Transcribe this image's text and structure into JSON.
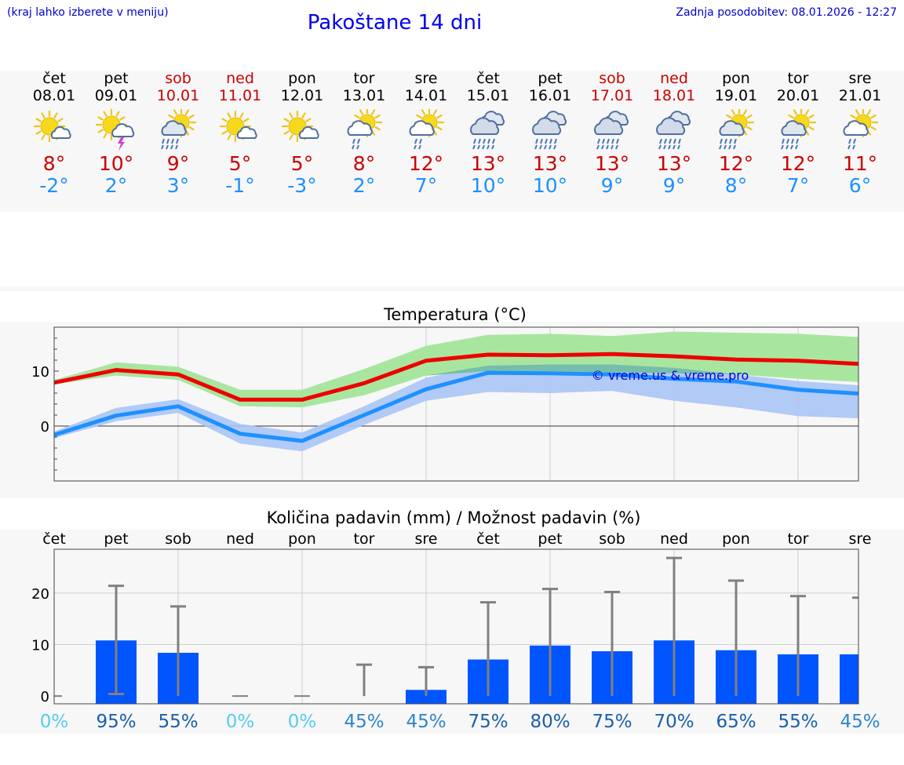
{
  "header": {
    "hint": "(kraj lahko izberete v meniju)",
    "title": "Pakoštane 14 dni",
    "updated": "Zadnja posodobitev: 08.01.2026 - 12:27"
  },
  "days": [
    {
      "name": "čet",
      "date": "08.01",
      "weekend": false,
      "icon": "sun-cloud-icon",
      "hi": "8°",
      "lo": "-2°"
    },
    {
      "name": "pet",
      "date": "09.01",
      "weekend": false,
      "icon": "sun-thunder-icon",
      "hi": "10°",
      "lo": "2°"
    },
    {
      "name": "sob",
      "date": "10.01",
      "weekend": true,
      "icon": "sun-rain-icon",
      "hi": "9°",
      "lo": "3°"
    },
    {
      "name": "ned",
      "date": "11.01",
      "weekend": true,
      "icon": "sun-cloud-icon",
      "hi": "5°",
      "lo": "-1°"
    },
    {
      "name": "pon",
      "date": "12.01",
      "weekend": false,
      "icon": "sun-cloud-icon",
      "hi": "5°",
      "lo": "-3°"
    },
    {
      "name": "tor",
      "date": "13.01",
      "weekend": false,
      "icon": "sun-light-rain-icon",
      "hi": "8°",
      "lo": "2°"
    },
    {
      "name": "sre",
      "date": "14.01",
      "weekend": false,
      "icon": "sun-light-rain-icon",
      "hi": "12°",
      "lo": "7°"
    },
    {
      "name": "čet",
      "date": "15.01",
      "weekend": false,
      "icon": "cloud-rain-icon",
      "hi": "13°",
      "lo": "10°"
    },
    {
      "name": "pet",
      "date": "16.01",
      "weekend": false,
      "icon": "cloud-rain-icon",
      "hi": "13°",
      "lo": "10°"
    },
    {
      "name": "sob",
      "date": "17.01",
      "weekend": true,
      "icon": "cloud-rain-icon",
      "hi": "13°",
      "lo": "9°"
    },
    {
      "name": "ned",
      "date": "18.01",
      "weekend": true,
      "icon": "cloud-rain-icon",
      "hi": "13°",
      "lo": "9°"
    },
    {
      "name": "pon",
      "date": "19.01",
      "weekend": false,
      "icon": "sun-rain-icon",
      "hi": "12°",
      "lo": "8°"
    },
    {
      "name": "tor",
      "date": "20.01",
      "weekend": false,
      "icon": "sun-rain-icon",
      "hi": "12°",
      "lo": "7°"
    },
    {
      "name": "sre",
      "date": "21.01",
      "weekend": false,
      "icon": "sun-light-rain-icon",
      "hi": "11°",
      "lo": "6°"
    }
  ],
  "colors": {
    "max_line": "#ee0000",
    "min_line": "#1e90ff",
    "max_band": "#a8e6a0",
    "min_band": "#a9c4f5",
    "overlap_band": "#6cbc9c",
    "precip_bar": "#0055ff",
    "error_bar": "#808080",
    "weekend": "#cc0000",
    "watermark": "#0000dd"
  },
  "chart_data": [
    {
      "type": "line",
      "title": "Temperatura (°C)",
      "xlabel": "",
      "ylabel": "",
      "ylim": [
        -10,
        18
      ],
      "yticks": [
        0,
        10
      ],
      "watermark": "© vreme.us & vreme.pro",
      "x": [
        0,
        1,
        2,
        3,
        4,
        5,
        6,
        7,
        8,
        9,
        10,
        11,
        12,
        13
      ],
      "series": [
        {
          "name": "max",
          "values": [
            7.9,
            10.2,
            9.4,
            4.8,
            4.8,
            7.8,
            11.9,
            13.0,
            12.9,
            13.1,
            12.7,
            12.1,
            11.9,
            11.3
          ],
          "band_low": [
            7.6,
            9.2,
            8.4,
            3.6,
            3.4,
            5.6,
            9.2,
            10.0,
            10.0,
            9.8,
            9.6,
            9.4,
            8.6,
            8.0
          ],
          "band_high": [
            8.4,
            11.6,
            10.8,
            6.6,
            6.6,
            10.4,
            14.6,
            16.6,
            16.8,
            16.4,
            17.2,
            17.0,
            16.8,
            16.2
          ]
        },
        {
          "name": "min",
          "values": [
            -1.6,
            1.9,
            3.6,
            -1.4,
            -2.7,
            2.0,
            6.7,
            9.7,
            9.6,
            9.4,
            8.6,
            8.1,
            6.6,
            5.9
          ],
          "band_low": [
            -2.2,
            0.9,
            2.4,
            -3.2,
            -4.6,
            0.2,
            4.6,
            6.2,
            6.0,
            6.4,
            4.6,
            3.4,
            1.8,
            1.4
          ],
          "band_high": [
            -1.0,
            3.3,
            4.9,
            0.4,
            -1.2,
            3.6,
            8.8,
            11.0,
            11.2,
            11.2,
            10.6,
            9.4,
            8.2,
            7.4
          ]
        }
      ]
    },
    {
      "type": "bar",
      "title": "Količina padavin (mm) / Možnost padavin (%)",
      "xlabel": "",
      "ylabel": "",
      "ylim": [
        -1.5,
        28.5
      ],
      "yticks": [
        0,
        10,
        20
      ],
      "categories": [
        "čet",
        "pet",
        "sob",
        "ned",
        "pon",
        "tor",
        "sre",
        "čet",
        "pet",
        "sob",
        "ned",
        "pon",
        "tor",
        "sre"
      ],
      "values": [
        0,
        10.8,
        8.4,
        0,
        0,
        0,
        1.2,
        7.1,
        9.8,
        8.7,
        10.8,
        8.9,
        8.1,
        8.1
      ],
      "error_high": [
        0,
        21.4,
        17.4,
        0,
        0,
        6.1,
        5.6,
        18.2,
        20.8,
        20.2,
        26.8,
        22.4,
        19.4,
        19.1
      ],
      "error_low": [
        0,
        0.4,
        0,
        0,
        0,
        0,
        0,
        0,
        0,
        0,
        0,
        0,
        0,
        0
      ],
      "probability": [
        "0%",
        "95%",
        "55%",
        "0%",
        "0%",
        "45%",
        "45%",
        "75%",
        "80%",
        "75%",
        "70%",
        "65%",
        "55%",
        "45%"
      ],
      "probability_colors": [
        "#55ccee",
        "#1a5fa8",
        "#1a5fa8",
        "#55ccee",
        "#55ccee",
        "#2f87c8",
        "#2f87c8",
        "#1a5fa8",
        "#1a5fa8",
        "#1a5fa8",
        "#1a5fa8",
        "#1a5fa8",
        "#1a5fa8",
        "#2f87c8"
      ]
    }
  ]
}
